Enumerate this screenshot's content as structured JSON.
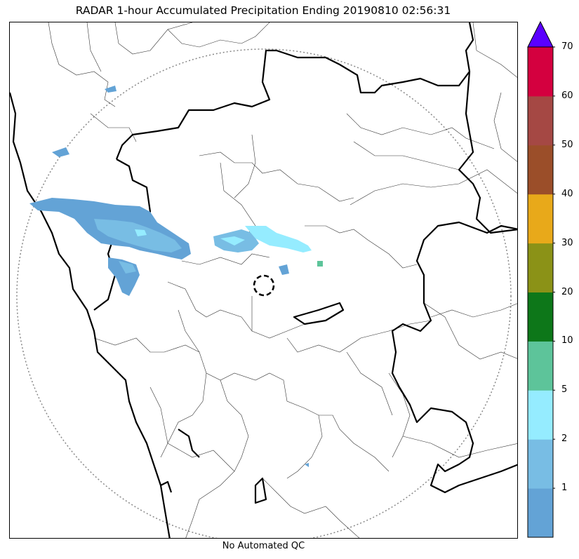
{
  "title": "RADAR 1-hour Accumulated Precipitation Ending 20190810 02:56:31",
  "footer": "No Automated QC",
  "colorbar": {
    "levels": [
      {
        "label": "",
        "color": "#63a3d6"
      },
      {
        "label": "1",
        "color": "#78bde4"
      },
      {
        "label": "2",
        "color": "#95ecff"
      },
      {
        "label": "5",
        "color": "#5dc49a"
      },
      {
        "label": "10",
        "color": "#0d7719"
      },
      {
        "label": "20",
        "color": "#8b9217"
      },
      {
        "label": "30",
        "color": "#e8a91a"
      },
      {
        "label": "40",
        "color": "#9b4e29"
      },
      {
        "label": "50",
        "color": "#a54844"
      },
      {
        "label": "60",
        "color": "#d4003f"
      },
      {
        "label": "70",
        "color": "#5a00ff"
      }
    ],
    "extend": "max"
  },
  "colors": {
    "coast": "#000000",
    "district": "#333333",
    "range_ring": "#888888"
  }
}
